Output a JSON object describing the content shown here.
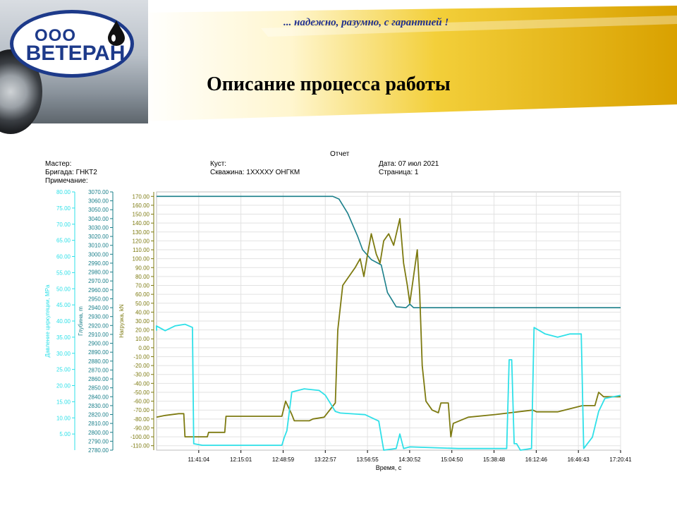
{
  "slide": {
    "company_prefix": "ООО",
    "company_name": "ВЕТЕРАН",
    "slogan": "... надежно, разумно, с гарантией !",
    "title": "Описание процесса работы"
  },
  "report": {
    "heading": "Отчет",
    "master_label": "Мастер:",
    "brigade": "Бригада: ГНКТ2",
    "note_label": "Примечание:",
    "cluster_label": "Куст:",
    "well": "Скважина: 1XXXXУ ОНГКМ",
    "date": "Дата: 07 июл 2021",
    "page": "Страница:  1"
  },
  "colors": {
    "pressure": "#2fe0e8",
    "depth": "#1a7f8a",
    "load": "#7d7a10",
    "gold": "#e3ad00",
    "brand": "#1d3a8a"
  },
  "chart_data": {
    "type": "line",
    "title": "",
    "xlabel": "Время, с",
    "x_ticks": [
      "11:41:04",
      "12:15:01",
      "12:48:59",
      "13:22:57",
      "13:56:55",
      "14:30:52",
      "15:04:50",
      "15:38:48",
      "16:12:46",
      "16:46:43",
      "17:20:41"
    ],
    "x_range": [
      "11:07:06",
      "17:20:41"
    ],
    "grid": true,
    "axes": [
      {
        "id": "pressure",
        "label": "Давление циркуляции, MPa",
        "range": [
          0,
          80
        ],
        "ticks": [
          "5.00",
          "10.00",
          "15.00",
          "20.00",
          "25.00",
          "30.00",
          "35.00",
          "40.00",
          "45.00",
          "50.00",
          "55.00",
          "60.00",
          "65.00",
          "70.00",
          "75.00",
          "80.00"
        ]
      },
      {
        "id": "depth",
        "label": "Глубина, m",
        "range": [
          2780,
          3070
        ],
        "ticks": [
          "2780.00",
          "2790.00",
          "2800.00",
          "2810.00",
          "2820.00",
          "2830.00",
          "2840.00",
          "2850.00",
          "2860.00",
          "2870.00",
          "2880.00",
          "2890.00",
          "2900.00",
          "2910.00",
          "2920.00",
          "2930.00",
          "2940.00",
          "2950.00",
          "2960.00",
          "2970.00",
          "2980.00",
          "2990.00",
          "3000.00",
          "3010.00",
          "3020.00",
          "3030.00",
          "3040.00",
          "3050.00",
          "3060.00",
          "3070.00"
        ]
      },
      {
        "id": "load",
        "label": "Нагрузка, kN",
        "range": [
          -115,
          175
        ],
        "ticks": [
          "-110.00",
          "-100.00",
          "-90.00",
          "-80.00",
          "-70.00",
          "-60.00",
          "-50.00",
          "-40.00",
          "-30.00",
          "-20.00",
          "-10.00",
          "0.00",
          "10.00",
          "20.00",
          "30.00",
          "40.00",
          "50.00",
          "60.00",
          "70.00",
          "80.00",
          "90.00",
          "100.00",
          "110.00",
          "120.00",
          "130.00",
          "140.00",
          "150.00",
          "160.00",
          "170.00"
        ]
      }
    ],
    "series": [
      {
        "id": "depth",
        "axis": "depth",
        "points": [
          [
            "11:07:06",
            3065
          ],
          [
            "13:29:00",
            3065
          ],
          [
            "13:34:00",
            3062
          ],
          [
            "13:41:00",
            3046
          ],
          [
            "13:49:00",
            3020
          ],
          [
            "13:53:00",
            3005
          ],
          [
            "14:00:00",
            2994
          ],
          [
            "14:08:00",
            2988
          ],
          [
            "14:13:00",
            2957
          ],
          [
            "14:20:00",
            2941
          ],
          [
            "14:28:00",
            2940
          ],
          [
            "14:31:00",
            2944
          ],
          [
            "14:34:00",
            2940
          ],
          [
            "17:20:41",
            2940
          ]
        ]
      },
      {
        "id": "load",
        "axis": "load",
        "points": [
          [
            "11:07:06",
            -78
          ],
          [
            "11:14:00",
            -76
          ],
          [
            "11:25:00",
            -74
          ],
          [
            "11:29:00",
            -74
          ],
          [
            "11:30:00",
            -100
          ],
          [
            "11:48:00",
            -100
          ],
          [
            "11:49:00",
            -95
          ],
          [
            "12:02:00",
            -95
          ],
          [
            "12:03:00",
            -77
          ],
          [
            "12:48:00",
            -77
          ],
          [
            "12:51:00",
            -60
          ],
          [
            "12:56:00",
            -75
          ],
          [
            "12:58:00",
            -82
          ],
          [
            "13:10:00",
            -82
          ],
          [
            "13:13:00",
            -80
          ],
          [
            "13:22:00",
            -78
          ],
          [
            "13:31:00",
            -62
          ],
          [
            "13:33:00",
            20
          ],
          [
            "13:37:00",
            70
          ],
          [
            "13:42:00",
            80
          ],
          [
            "13:47:00",
            90
          ],
          [
            "13:51:00",
            100
          ],
          [
            "13:54:00",
            80
          ],
          [
            "13:57:00",
            105
          ],
          [
            "14:00:00",
            128
          ],
          [
            "14:04:00",
            105
          ],
          [
            "14:07:00",
            95
          ],
          [
            "14:10:00",
            120
          ],
          [
            "14:14:00",
            128
          ],
          [
            "14:18:00",
            115
          ],
          [
            "14:23:00",
            145
          ],
          [
            "14:26:00",
            95
          ],
          [
            "14:29:00",
            70
          ],
          [
            "14:31:00",
            50
          ],
          [
            "14:34:00",
            80
          ],
          [
            "14:37:00",
            110
          ],
          [
            "14:39:00",
            60
          ],
          [
            "14:41:00",
            -20
          ],
          [
            "14:44:00",
            -60
          ],
          [
            "14:49:00",
            -70
          ],
          [
            "14:54:00",
            -73
          ],
          [
            "14:56:00",
            -62
          ],
          [
            "15:02:00",
            -62
          ],
          [
            "15:04:00",
            -100
          ],
          [
            "15:06:00",
            -85
          ],
          [
            "15:18:00",
            -78
          ],
          [
            "15:40:00",
            -75
          ],
          [
            "16:10:00",
            -70
          ],
          [
            "16:13:00",
            -72
          ],
          [
            "16:30:00",
            -72
          ],
          [
            "16:50:00",
            -65
          ],
          [
            "17:00:00",
            -65
          ],
          [
            "17:03:00",
            -50
          ],
          [
            "17:07:00",
            -55
          ],
          [
            "17:20:41",
            -55
          ]
        ]
      },
      {
        "id": "pressure",
        "axis": "pressure",
        "points": [
          [
            "11:07:06",
            37
          ],
          [
            "11:07:00",
            38.5
          ],
          [
            "11:14:00",
            37
          ],
          [
            "11:22:00",
            38.5
          ],
          [
            "11:30:00",
            39
          ],
          [
            "11:36:00",
            38
          ],
          [
            "11:37:00",
            2
          ],
          [
            "11:44:00",
            1.5
          ],
          [
            "12:20:00",
            1.5
          ],
          [
            "12:48:00",
            1.5
          ],
          [
            "12:50:00",
            4
          ],
          [
            "12:52:00",
            6
          ],
          [
            "12:56:00",
            18
          ],
          [
            "13:06:00",
            19
          ],
          [
            "13:18:00",
            18.5
          ],
          [
            "13:23:00",
            17
          ],
          [
            "13:31:00",
            12
          ],
          [
            "13:35:00",
            11.5
          ],
          [
            "13:55:00",
            11
          ],
          [
            "14:06:00",
            9
          ],
          [
            "14:10:00",
            0
          ],
          [
            "14:20:00",
            0.5
          ],
          [
            "14:23:00",
            5
          ],
          [
            "14:26:00",
            0.5
          ],
          [
            "14:31:00",
            1
          ],
          [
            "15:10:00",
            0.5
          ],
          [
            "15:49:00",
            0.5
          ],
          [
            "15:51:00",
            28
          ],
          [
            "15:53:00",
            28
          ],
          [
            "15:55:00",
            2
          ],
          [
            "15:57:00",
            2
          ],
          [
            "16:00:00",
            0
          ],
          [
            "16:09:00",
            0.5
          ],
          [
            "16:11:00",
            38
          ],
          [
            "16:20:00",
            36
          ],
          [
            "16:30:00",
            35
          ],
          [
            "16:40:00",
            36
          ],
          [
            "16:49:00",
            36
          ],
          [
            "16:51:00",
            0.5
          ],
          [
            "16:58:00",
            4
          ],
          [
            "17:03:00",
            12
          ],
          [
            "17:08:00",
            16
          ],
          [
            "17:20:41",
            17
          ]
        ]
      }
    ]
  }
}
